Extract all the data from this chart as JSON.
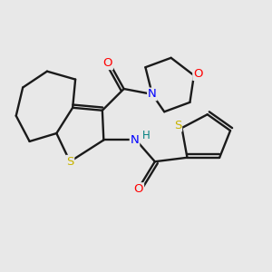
{
  "background_color": "#e8e8e8",
  "bond_color": "#1a1a1a",
  "atom_colors": {
    "S": "#c8b400",
    "N": "#0000ff",
    "O": "#ff0000",
    "NH": "#008080",
    "C": "#1a1a1a"
  },
  "figsize": [
    3.0,
    3.0
  ],
  "dpi": 100
}
